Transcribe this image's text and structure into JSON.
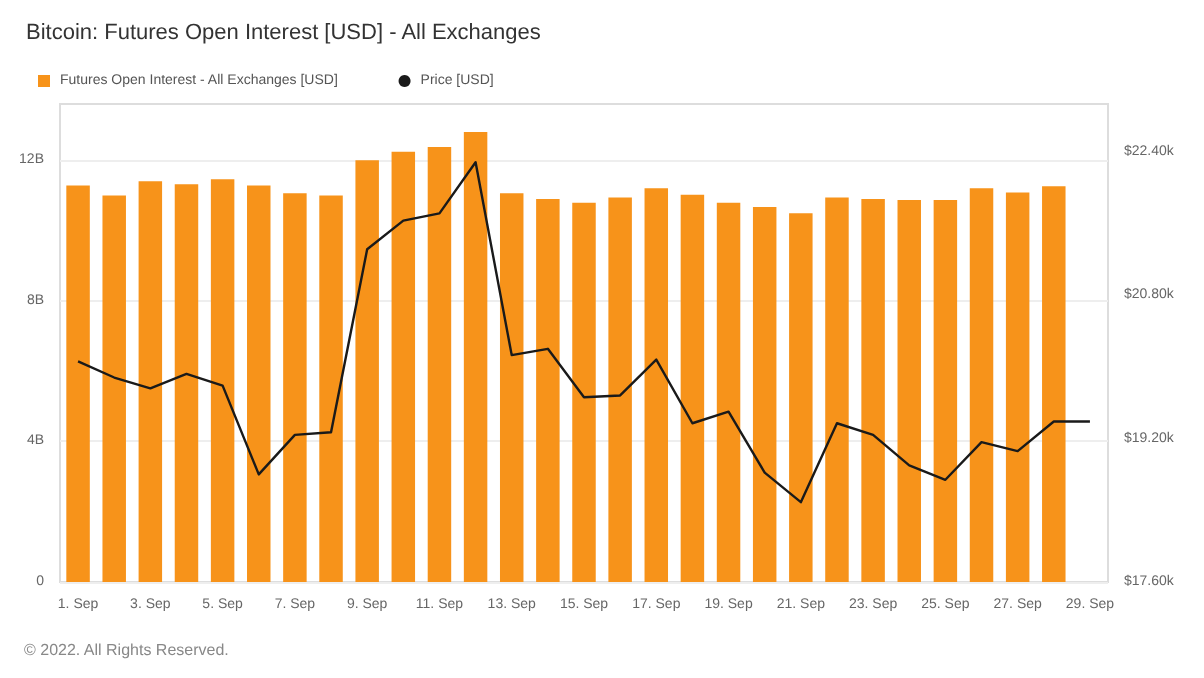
{
  "chart_data": {
    "type": "bar",
    "title": "Bitcoin: Futures Open Interest [USD] - All Exchanges",
    "categories": [
      "1. Sep",
      null,
      "3. Sep",
      null,
      "5. Sep",
      null,
      "7. Sep",
      null,
      "9. Sep",
      null,
      "11. Sep",
      null,
      "13. Sep",
      null,
      "15. Sep",
      null,
      "17. Sep",
      null,
      "19. Sep",
      null,
      "21. Sep",
      null,
      "23. Sep",
      null,
      "25. Sep",
      null,
      "27. Sep",
      null,
      "29. Sep"
    ],
    "series": [
      {
        "name": "Futures Open Interest - All Exchanges [USD]",
        "color": "#f7931a",
        "values": [
          11.28,
          11.0,
          11.4,
          11.32,
          11.46,
          11.28,
          11.06,
          11.0,
          12.0,
          12.24,
          12.38,
          12.8,
          11.06,
          10.9,
          10.79,
          10.94,
          11.2,
          11.02,
          10.79,
          10.67,
          10.49,
          10.94,
          10.9,
          10.87,
          10.87,
          11.2,
          11.08,
          11.26,
          null
        ]
      },
      {
        "name": "Price [USD]",
        "type": "line",
        "axis": "y2",
        "color": "#1a1a1a",
        "values": [
          20.06,
          19.88,
          19.76,
          19.92,
          19.79,
          18.8,
          19.24,
          19.27,
          21.31,
          21.63,
          21.71,
          22.28,
          20.13,
          20.2,
          19.66,
          19.68,
          20.08,
          19.37,
          19.5,
          18.82,
          18.49,
          19.37,
          19.24,
          18.9,
          18.74,
          19.16,
          19.06,
          19.39,
          19.39
        ]
      }
    ],
    "ylim": [
      0,
      13.6
    ],
    "yticks": [
      {
        "value": 0,
        "label": "0"
      },
      {
        "value": 4,
        "label": "4B"
      },
      {
        "value": 8,
        "label": "8B"
      },
      {
        "value": 12,
        "label": "12B"
      }
    ],
    "y2lim": [
      17.6,
      22.93
    ],
    "y2ticks": [
      {
        "value": 17.6,
        "label": "$17.60k"
      },
      {
        "value": 19.2,
        "label": "$19.20k"
      },
      {
        "value": 20.8,
        "label": "$20.80k"
      },
      {
        "value": 22.4,
        "label": "$22.40k"
      }
    ],
    "grid": "y",
    "legend": "top left",
    "marker": "none",
    "line_style": "solid",
    "annotations": [
      "© 2022. All Rights Reserved."
    ]
  }
}
